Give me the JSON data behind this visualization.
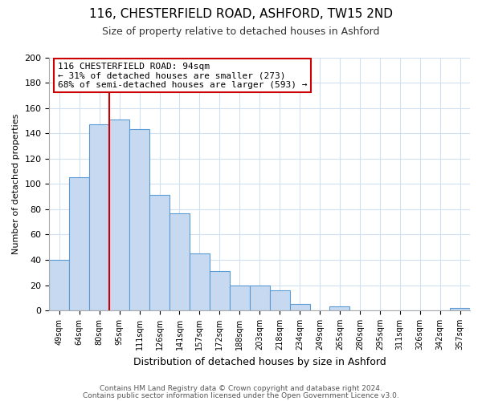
{
  "title": "116, CHESTERFIELD ROAD, ASHFORD, TW15 2ND",
  "subtitle": "Size of property relative to detached houses in Ashford",
  "xlabel": "Distribution of detached houses by size in Ashford",
  "ylabel": "Number of detached properties",
  "bar_labels": [
    "49sqm",
    "64sqm",
    "80sqm",
    "95sqm",
    "111sqm",
    "126sqm",
    "141sqm",
    "157sqm",
    "172sqm",
    "188sqm",
    "203sqm",
    "218sqm",
    "234sqm",
    "249sqm",
    "265sqm",
    "280sqm",
    "295sqm",
    "311sqm",
    "326sqm",
    "342sqm",
    "357sqm"
  ],
  "bar_values": [
    40,
    105,
    147,
    151,
    143,
    91,
    77,
    45,
    31,
    20,
    20,
    16,
    5,
    0,
    3,
    0,
    0,
    0,
    0,
    0,
    2
  ],
  "bar_color": "#c6d9f0",
  "bar_edge_color": "#5b9bd5",
  "vline_x_idx": 3,
  "vline_color": "#cc0000",
  "annotation_line1": "116 CHESTERFIELD ROAD: 94sqm",
  "annotation_line2": "← 31% of detached houses are smaller (273)",
  "annotation_line3": "68% of semi-detached houses are larger (593) →",
  "annotation_box_edge_color": "#cc0000",
  "ylim": [
    0,
    200
  ],
  "yticks": [
    0,
    20,
    40,
    60,
    80,
    100,
    120,
    140,
    160,
    180,
    200
  ],
  "footer_line1": "Contains HM Land Registry data © Crown copyright and database right 2024.",
  "footer_line2": "Contains public sector information licensed under the Open Government Licence v3.0.",
  "bg_color": "#ffffff",
  "grid_color": "#d0e0f0",
  "figwidth": 6.0,
  "figheight": 5.0
}
